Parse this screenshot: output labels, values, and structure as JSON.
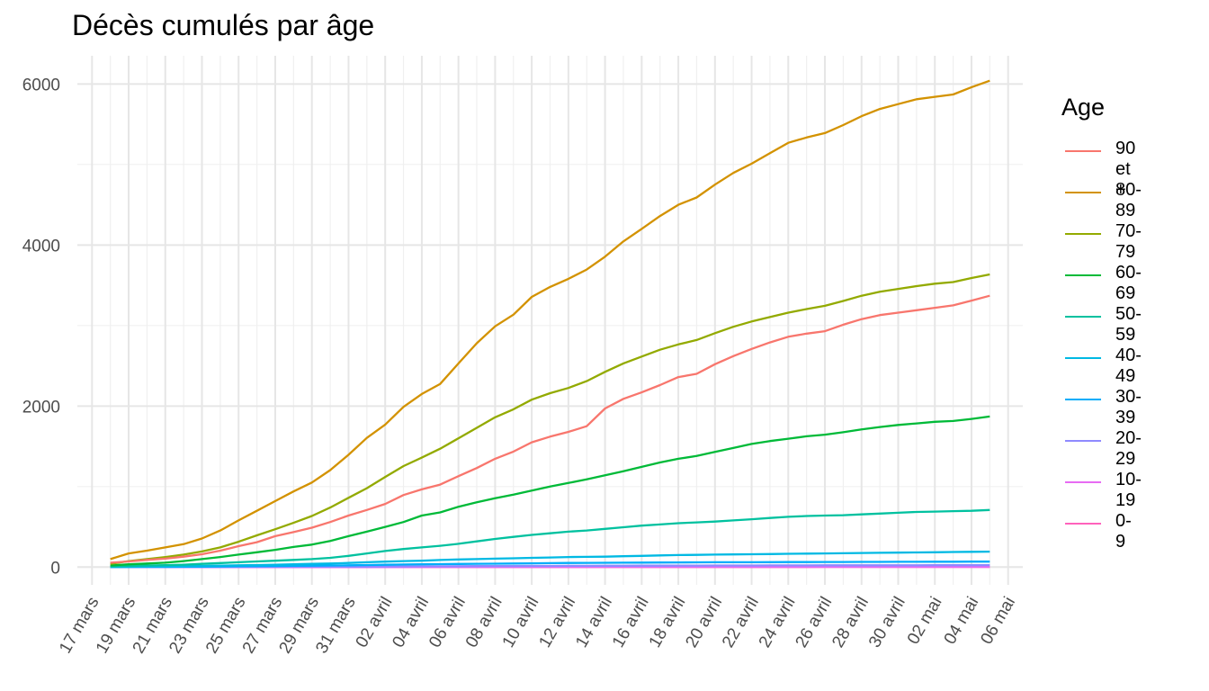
{
  "chart_data": {
    "type": "line",
    "title": "Décès cumulés par âge",
    "xlabel": "",
    "ylabel": "",
    "ylim": [
      -220,
      6350
    ],
    "yticks": [
      0,
      2000,
      4000,
      6000
    ],
    "x_tick_labels": [
      "17 mars",
      "19 mars",
      "21 mars",
      "23 mars",
      "25 mars",
      "27 mars",
      "29 mars",
      "31 mars",
      "02 avril",
      "04 avril",
      "06 avril",
      "08 avril",
      "10 avril",
      "12 avril",
      "14 avril",
      "16 avril",
      "18 avril",
      "20 avril",
      "22 avril",
      "24 avril",
      "26 avril",
      "28 avril",
      "30 avril",
      "02 mai",
      "04 mai",
      "06 mai"
    ],
    "x_start_day": 18,
    "legend_title": "Age",
    "legend_position": "right",
    "grid": true,
    "series": [
      {
        "name": "90 et +",
        "color": "#F8766D",
        "values": [
          55,
          70,
          90,
          105,
          130,
          160,
          205,
          260,
          310,
          385,
          435,
          490,
          560,
          640,
          710,
          785,
          895,
          965,
          1025,
          1130,
          1230,
          1345,
          1435,
          1550,
          1620,
          1680,
          1750,
          1970,
          2090,
          2170,
          2260,
          2360,
          2400,
          2520,
          2620,
          2710,
          2790,
          2860,
          2900,
          2930,
          3010,
          3080,
          3130,
          3160,
          3190,
          3220,
          3250,
          3310,
          3370
        ]
      },
      {
        "name": "80-89",
        "color": "#D39200",
        "values": [
          100,
          170,
          205,
          245,
          285,
          355,
          455,
          580,
          700,
          820,
          940,
          1050,
          1205,
          1395,
          1605,
          1770,
          1990,
          2150,
          2275,
          2530,
          2780,
          2990,
          3135,
          3355,
          3480,
          3580,
          3695,
          3855,
          4045,
          4200,
          4360,
          4500,
          4590,
          4750,
          4895,
          5010,
          5140,
          5270,
          5335,
          5390,
          5490,
          5600,
          5690,
          5750,
          5810,
          5840,
          5870,
          5960,
          6040
        ]
      },
      {
        "name": "70-79",
        "color": "#93AA00",
        "values": [
          40,
          75,
          100,
          125,
          155,
          195,
          245,
          315,
          395,
          470,
          550,
          635,
          740,
          860,
          980,
          1120,
          1255,
          1360,
          1470,
          1600,
          1730,
          1860,
          1960,
          2080,
          2160,
          2225,
          2310,
          2425,
          2530,
          2615,
          2700,
          2765,
          2820,
          2905,
          2985,
          3050,
          3105,
          3160,
          3205,
          3245,
          3305,
          3370,
          3420,
          3455,
          3490,
          3520,
          3540,
          3590,
          3635
        ]
      },
      {
        "name": "60-69",
        "color": "#00BA38",
        "values": [
          20,
          35,
          45,
          55,
          75,
          100,
          125,
          155,
          185,
          215,
          250,
          280,
          325,
          385,
          440,
          500,
          560,
          640,
          680,
          750,
          805,
          855,
          900,
          950,
          1000,
          1045,
          1090,
          1140,
          1190,
          1245,
          1300,
          1345,
          1380,
          1430,
          1480,
          1530,
          1565,
          1595,
          1625,
          1645,
          1675,
          1710,
          1740,
          1765,
          1785,
          1805,
          1815,
          1840,
          1870
        ]
      },
      {
        "name": "50-59",
        "color": "#00C19F",
        "values": [
          10,
          15,
          20,
          25,
          30,
          40,
          50,
          60,
          70,
          80,
          90,
          100,
          115,
          140,
          170,
          200,
          225,
          245,
          265,
          290,
          320,
          350,
          375,
          400,
          420,
          440,
          455,
          475,
          495,
          515,
          530,
          545,
          555,
          565,
          580,
          595,
          610,
          625,
          635,
          640,
          645,
          655,
          665,
          675,
          685,
          690,
          695,
          700,
          710
        ]
      },
      {
        "name": "40-49",
        "color": "#00B9E3",
        "values": [
          5,
          5,
          8,
          10,
          12,
          15,
          18,
          22,
          26,
          30,
          35,
          40,
          45,
          52,
          60,
          68,
          75,
          80,
          88,
          95,
          100,
          105,
          110,
          115,
          120,
          125,
          128,
          130,
          135,
          140,
          145,
          150,
          152,
          155,
          158,
          160,
          162,
          165,
          168,
          170,
          172,
          175,
          178,
          180,
          182,
          185,
          188,
          190,
          192
        ]
      },
      {
        "name": "30-39",
        "color": "#00ADFA",
        "values": [
          1,
          2,
          3,
          4,
          5,
          6,
          8,
          10,
          12,
          14,
          16,
          18,
          20,
          23,
          26,
          29,
          32,
          35,
          37,
          39,
          41,
          43,
          45,
          47,
          49,
          51,
          53,
          54,
          55,
          56,
          57,
          58,
          59,
          60,
          60,
          61,
          62,
          63,
          63,
          64,
          64,
          65,
          65,
          66,
          66,
          67,
          67,
          68,
          68
        ]
      },
      {
        "name": "20-29",
        "color": "#8F8AFF",
        "values": [
          0,
          0,
          1,
          1,
          1,
          2,
          2,
          3,
          3,
          4,
          4,
          5,
          5,
          6,
          7,
          8,
          9,
          10,
          10,
          11,
          12,
          13,
          14,
          15,
          15,
          16,
          16,
          17,
          17,
          18,
          18,
          19,
          19,
          20,
          20,
          20,
          21,
          21,
          21,
          22,
          22,
          22,
          23,
          23,
          23,
          24,
          24,
          24,
          25
        ]
      },
      {
        "name": "10-19",
        "color": "#E76BF3",
        "values": [
          0,
          0,
          0,
          0,
          0,
          0,
          0,
          0,
          0,
          1,
          1,
          1,
          1,
          1,
          1,
          1,
          1,
          2,
          2,
          2,
          2,
          2,
          2,
          2,
          2,
          2,
          2,
          3,
          3,
          3,
          3,
          3,
          3,
          3,
          3,
          3,
          3,
          3,
          3,
          3,
          3,
          3,
          3,
          3,
          3,
          3,
          3,
          3,
          3
        ]
      },
      {
        "name": "0-9",
        "color": "#FF62BC",
        "values": [
          0,
          0,
          0,
          0,
          0,
          0,
          0,
          0,
          0,
          0,
          0,
          0,
          0,
          0,
          0,
          1,
          1,
          1,
          1,
          1,
          1,
          1,
          1,
          1,
          1,
          1,
          1,
          1,
          1,
          1,
          1,
          1,
          1,
          1,
          1,
          1,
          1,
          1,
          1,
          2,
          2,
          2,
          2,
          2,
          2,
          2,
          2,
          2,
          2
        ]
      }
    ]
  }
}
